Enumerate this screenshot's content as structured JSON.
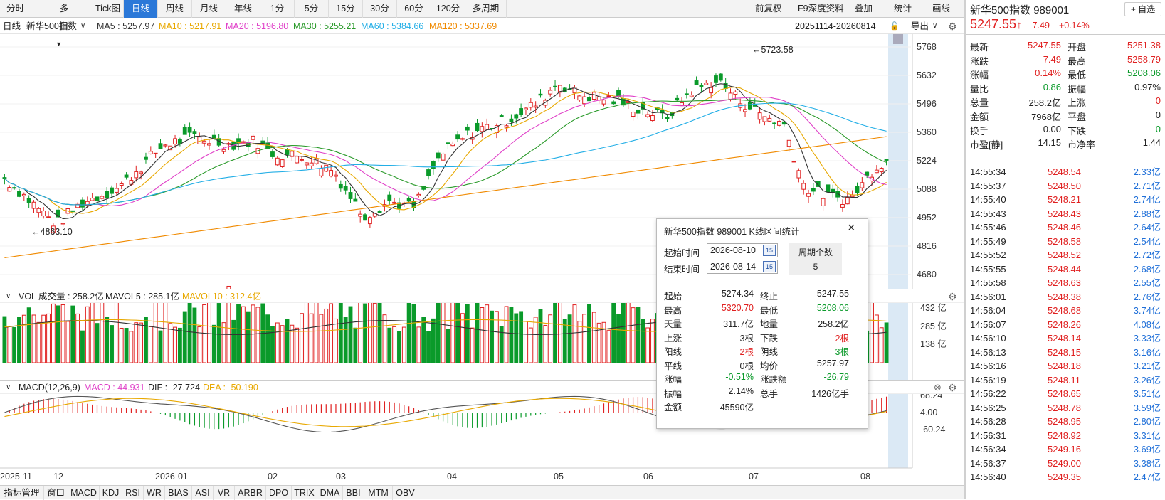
{
  "toolbar": {
    "periods": [
      "分时",
      "多日",
      "Tick图",
      "日线",
      "周线",
      "月线",
      "年线",
      "1分",
      "5分",
      "15分",
      "30分",
      "60分",
      "120分",
      "多周期"
    ],
    "active": "日线",
    "right_tools": [
      "前复权",
      "F9深度资料",
      "叠加",
      "统计",
      "画线"
    ]
  },
  "info": {
    "period": "日线",
    "name": "新华500指数",
    "ma5": "MA5 : 5257.97",
    "ma10": "MA10 : 5217.91",
    "ma20": "MA20 : 5196.80",
    "ma30": "MA30 : 5255.21",
    "ma60": "MA60 : 5384.66",
    "ma120": "MA120 : 5337.69",
    "range": "20251114-20260814",
    "export": "导出"
  },
  "price_axis": [
    "5768",
    "5632",
    "5496",
    "5360",
    "5224",
    "5088",
    "4952",
    "4816",
    "4680"
  ],
  "annotations": {
    "high": "←5723.58",
    "low": "←4863.10"
  },
  "vol": {
    "label": "VOL 成交量 : 258.2亿",
    "mavol5": "MAVOL5 : 285.1亿",
    "mavol10": "MAVOL10 : 312.4亿",
    "axis": [
      "432 亿",
      "285 亿",
      "138 亿"
    ]
  },
  "macd": {
    "label": "MACD(12,26,9)",
    "macd": "MACD : 44.931",
    "dif": "DIF : -27.724",
    "dea": "DEA : -50.190",
    "axis": [
      "68.24",
      "4.00",
      "-60.24"
    ]
  },
  "time_axis": [
    "2025-11",
    "12",
    "2026-01",
    "02",
    "03",
    "04",
    "05",
    "06",
    "07",
    "08"
  ],
  "bottom_tabs": [
    "指标管理",
    "窗口",
    "MACD",
    "KDJ",
    "RSI",
    "WR",
    "BIAS",
    "ASI",
    "VR",
    "ARBR",
    "DPO",
    "TRIX",
    "DMA",
    "BBI",
    "MTM",
    "OBV"
  ],
  "colors": {
    "up": "#e02020",
    "down": "#0a9a2a",
    "ma5": "#333333",
    "ma10": "#e8a800",
    "ma20": "#e040c8",
    "ma30": "#2a9a2a",
    "ma60": "#22aee6",
    "ma120": "#f08a00"
  },
  "quote": {
    "title": "新华500指数",
    "code": "989001",
    "add": "+ 自选",
    "price": "5247.55",
    "arrow": "↑",
    "change": "7.49",
    "pct": "+0.14%",
    "stats": [
      [
        "最新",
        "5247.55",
        "开盘",
        "5251.38"
      ],
      [
        "涨跌",
        "7.49",
        "最高",
        "5258.79"
      ],
      [
        "涨幅",
        "0.14%",
        "最低",
        "5208.06"
      ],
      [
        "量比",
        "0.86",
        "振幅",
        "0.97%"
      ],
      [
        "总量",
        "258.2亿",
        "上涨",
        "0"
      ],
      [
        "金额",
        "7968亿",
        "平盘",
        "0"
      ],
      [
        "换手",
        "0.00",
        "下跌",
        "0"
      ],
      [
        "市盈[静]",
        "14.15",
        "市净率",
        "1.44"
      ]
    ]
  },
  "ticks": [
    [
      "14:55:34",
      "5248.54",
      "2.33亿"
    ],
    [
      "14:55:37",
      "5248.50",
      "2.71亿"
    ],
    [
      "14:55:40",
      "5248.21",
      "2.74亿"
    ],
    [
      "14:55:43",
      "5248.43",
      "2.88亿"
    ],
    [
      "14:55:46",
      "5248.46",
      "2.64亿"
    ],
    [
      "14:55:49",
      "5248.58",
      "2.54亿"
    ],
    [
      "14:55:52",
      "5248.52",
      "2.72亿"
    ],
    [
      "14:55:55",
      "5248.44",
      "2.68亿"
    ],
    [
      "14:55:58",
      "5248.63",
      "2.55亿"
    ],
    [
      "14:56:01",
      "5248.38",
      "2.76亿"
    ],
    [
      "14:56:04",
      "5248.68",
      "3.74亿"
    ],
    [
      "14:56:07",
      "5248.26",
      "4.08亿"
    ],
    [
      "14:56:10",
      "5248.14",
      "3.33亿"
    ],
    [
      "14:56:13",
      "5248.15",
      "3.16亿"
    ],
    [
      "14:56:16",
      "5248.18",
      "3.21亿"
    ],
    [
      "14:56:19",
      "5248.11",
      "3.26亿"
    ],
    [
      "14:56:22",
      "5248.65",
      "3.51亿"
    ],
    [
      "14:56:25",
      "5248.78",
      "3.59亿"
    ],
    [
      "14:56:28",
      "5248.95",
      "2.80亿"
    ],
    [
      "14:56:31",
      "5248.92",
      "3.31亿"
    ],
    [
      "14:56:34",
      "5249.16",
      "3.69亿"
    ],
    [
      "14:56:37",
      "5249.00",
      "3.38亿"
    ],
    [
      "14:56:40",
      "5249.35",
      "2.47亿"
    ]
  ],
  "popup": {
    "title": "新华500指数 989001 K线区间统计",
    "start_label": "起始时间",
    "start": "2026-08-10",
    "end_label": "结束时间",
    "end": "2026-08-14",
    "cal": "15",
    "period_count_label": "周期个数",
    "period_count": "5",
    "rows": [
      [
        "起始",
        "5274.34",
        "终止",
        "5247.55"
      ],
      [
        "最高",
        "5320.70",
        "最低",
        "5208.06"
      ],
      [
        "天量",
        "311.7亿",
        "地量",
        "258.2亿"
      ],
      [
        "上涨",
        "3根",
        "下跌",
        "2根"
      ],
      [
        "阳线",
        "2根",
        "阴线",
        "3根"
      ],
      [
        "平线",
        "0根",
        "均价",
        "5257.97"
      ],
      [
        "涨幅",
        "-0.51%",
        "涨跌额",
        "-26.79"
      ],
      [
        "振幅",
        "2.14%",
        "总手",
        "1426亿手"
      ],
      [
        "金额",
        "45590亿",
        "",
        ""
      ]
    ]
  }
}
